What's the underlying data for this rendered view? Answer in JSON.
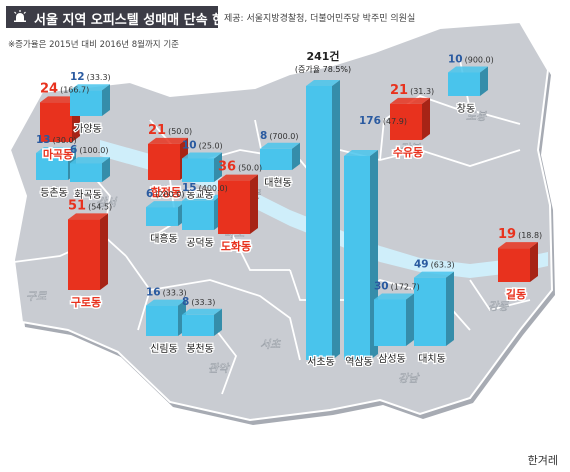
{
  "header": {
    "title": "서울 지역 오피스텔 성매매 단속 현황",
    "source": "제공: 서울지방경찰청, 더불어민주당 박주민 의원실",
    "note": "※증가율은 2015년 대비 2016년 8월까지 기준"
  },
  "credit": "한겨레",
  "colors": {
    "highlight": "#e8321e",
    "normal": "#49c4ec",
    "map": "#c9ccd2",
    "river": "#cfeefa"
  },
  "districts": [
    "강서",
    "구로",
    "관악",
    "서초",
    "강남",
    "강동",
    "마포",
    "서대문",
    "강북",
    "도봉"
  ],
  "chart_data": {
    "type": "bar",
    "title": "서울 지역 오피스텔 성매매 단속 현황",
    "value_unit": "건",
    "bars": [
      {
        "dong": "마곡동",
        "value": 24,
        "rate": "(166.7)",
        "highlight": true
      },
      {
        "dong": "가양동",
        "value": 12,
        "rate": "(33.3)",
        "highlight": false
      },
      {
        "dong": "등촌동",
        "value": 13,
        "rate": "(30.0)",
        "highlight": false
      },
      {
        "dong": "화곡동",
        "value": 6,
        "rate": "(100.0)",
        "highlight": false
      },
      {
        "dong": "구로동",
        "value": 51,
        "rate": "(54.5)",
        "highlight": true
      },
      {
        "dong": "합정동",
        "value": 21,
        "rate": "(50.0)",
        "highlight": true
      },
      {
        "dong": "동교동",
        "value": 10,
        "rate": "(25.0)",
        "highlight": false
      },
      {
        "dong": "대흥동",
        "value": 6,
        "rate": "(200.0)",
        "highlight": false
      },
      {
        "dong": "공덕동",
        "value": 15,
        "rate": "(400.0)",
        "highlight": false
      },
      {
        "dong": "도화동",
        "value": 36,
        "rate": "(50.0)",
        "highlight": true
      },
      {
        "dong": "대현동",
        "value": 8,
        "rate": "(700.0)",
        "highlight": false
      },
      {
        "dong": "신림동",
        "value": 16,
        "rate": "(33.3)",
        "highlight": false
      },
      {
        "dong": "봉천동",
        "value": 8,
        "rate": "(33.3)",
        "highlight": false
      },
      {
        "dong": "서초동",
        "value": 241,
        "value_text": "241건",
        "rate": "(증가율 78.5%)",
        "highlight": false
      },
      {
        "dong": "역삼동",
        "value": 176,
        "rate": "(47.9)",
        "highlight": false
      },
      {
        "dong": "삼성동",
        "value": 30,
        "rate": "(172.7)",
        "highlight": false
      },
      {
        "dong": "대치동",
        "value": 49,
        "rate": "(63.3)",
        "highlight": false
      },
      {
        "dong": "수유동",
        "value": 21,
        "rate": "(31.3)",
        "highlight": true
      },
      {
        "dong": "창동",
        "value": 10,
        "rate": "(900.0)",
        "highlight": false
      },
      {
        "dong": "길동",
        "value": 19,
        "rate": "(18.8)",
        "highlight": true
      }
    ]
  }
}
